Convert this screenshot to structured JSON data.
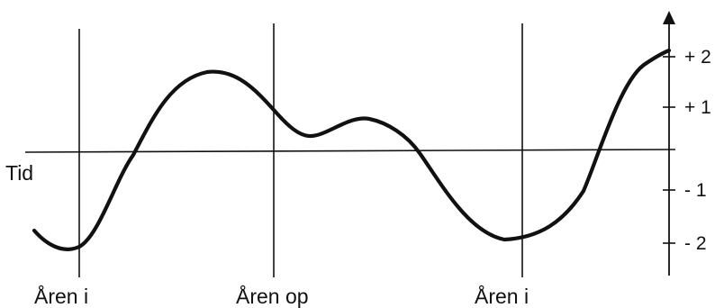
{
  "diagram": {
    "axis_label_time": "Tid",
    "y_tick_labels": [
      "+ 2",
      "+ 1",
      "- 1",
      "- 2"
    ],
    "vertical_markers": [
      {
        "label": "Åren i"
      },
      {
        "label": "Åren op"
      },
      {
        "label": "Åren i"
      }
    ],
    "colors": {
      "ink": "#111111",
      "background": "#ffffff"
    }
  }
}
